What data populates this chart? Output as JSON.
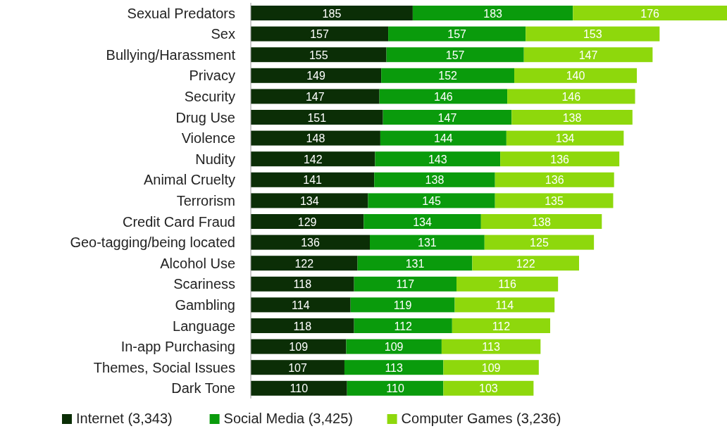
{
  "chart_data": {
    "type": "bar",
    "orientation": "horizontal",
    "stacked": true,
    "data_labels": true,
    "legend": "bottom",
    "categories": [
      "Sexual Predators",
      "Sex",
      "Bullying/Harassment",
      "Privacy",
      "Security",
      "Drug Use",
      "Violence",
      "Nudity",
      "Animal Cruelty",
      "Terrorism",
      "Credit Card Fraud",
      "Geo-tagging/being located",
      "Alcohol Use",
      "Scariness",
      "Gambling",
      "Language",
      "In-app Purchasing",
      "Themes, Social Issues",
      "Dark Tone"
    ],
    "series": [
      {
        "name": "Internet (3,343)",
        "color": "#0b2e06",
        "values": [
          185,
          157,
          155,
          149,
          147,
          151,
          148,
          142,
          141,
          134,
          129,
          136,
          122,
          118,
          114,
          118,
          109,
          107,
          110
        ]
      },
      {
        "name": "Social Media (3,425)",
        "color": "#0a9b0c",
        "values": [
          183,
          157,
          157,
          152,
          146,
          147,
          144,
          143,
          138,
          145,
          134,
          131,
          131,
          117,
          119,
          112,
          109,
          113,
          110
        ]
      },
      {
        "name": "Computer Games (3,236)",
        "color": "#8ed80c",
        "values": [
          176,
          153,
          147,
          140,
          146,
          138,
          134,
          136,
          136,
          135,
          138,
          125,
          122,
          116,
          114,
          112,
          113,
          109,
          103
        ]
      }
    ]
  }
}
